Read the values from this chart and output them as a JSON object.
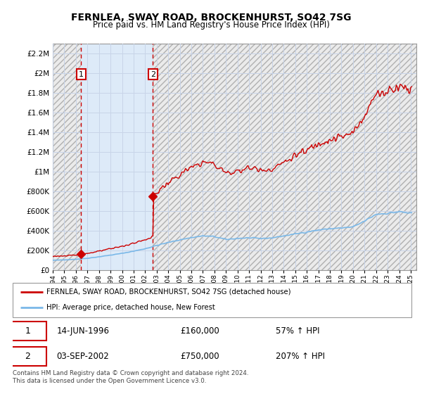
{
  "title": "FERNLEA, SWAY ROAD, BROCKENHURST, SO42 7SG",
  "subtitle": "Price paid vs. HM Land Registry's House Price Index (HPI)",
  "xlim_start": 1994.0,
  "xlim_end": 2025.5,
  "ylim_min": 0,
  "ylim_max": 2300000,
  "yticks": [
    0,
    200000,
    400000,
    600000,
    800000,
    1000000,
    1200000,
    1400000,
    1600000,
    1800000,
    2000000,
    2200000
  ],
  "ytick_labels": [
    "£0",
    "£200K",
    "£400K",
    "£600K",
    "£800K",
    "£1M",
    "£1.2M",
    "£1.4M",
    "£1.6M",
    "£1.8M",
    "£2M",
    "£2.2M"
  ],
  "xticks": [
    1994,
    1995,
    1996,
    1997,
    1998,
    1999,
    2000,
    2001,
    2002,
    2003,
    2004,
    2005,
    2006,
    2007,
    2008,
    2009,
    2010,
    2011,
    2012,
    2013,
    2014,
    2015,
    2016,
    2017,
    2018,
    2019,
    2020,
    2021,
    2022,
    2023,
    2024,
    2025
  ],
  "sale1_x": 1996.45,
  "sale1_y": 160000,
  "sale1_label": "1",
  "sale1_date": "14-JUN-1996",
  "sale1_price": "£160,000",
  "sale1_hpi": "57% ↑ HPI",
  "sale2_x": 2002.67,
  "sale2_y": 750000,
  "sale2_label": "2",
  "sale2_date": "03-SEP-2002",
  "sale2_price": "£750,000",
  "sale2_hpi": "207% ↑ HPI",
  "hpi_color": "#7ab8e8",
  "price_color": "#cc0000",
  "sale_dot_color": "#cc0000",
  "grid_color": "#c8d4e8",
  "shaded_region_color": "#ddeaf8",
  "hatch_region_color": "#d8d8d8",
  "legend_label_price": "FERNLEA, SWAY ROAD, BROCKENHURST, SO42 7SG (detached house)",
  "legend_label_hpi": "HPI: Average price, detached house, New Forest",
  "footnote": "Contains HM Land Registry data © Crown copyright and database right 2024.\nThis data is licensed under the Open Government Licence v3.0."
}
